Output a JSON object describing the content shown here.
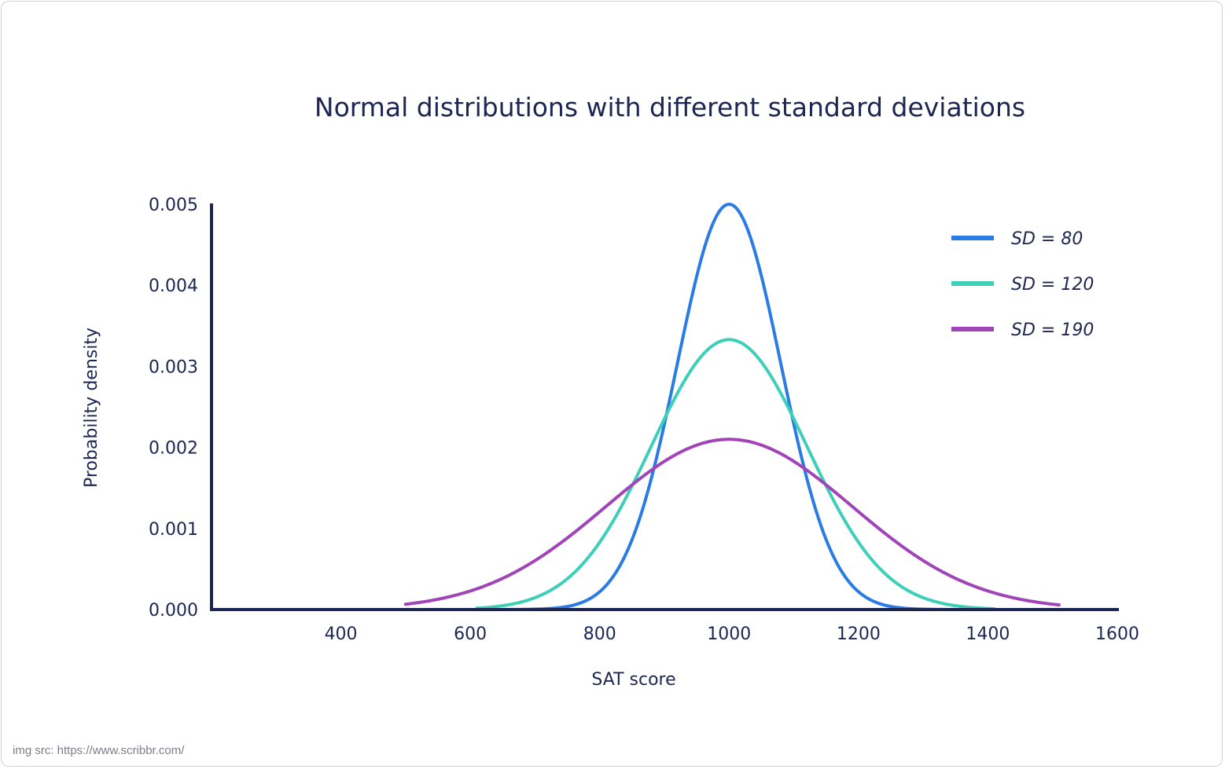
{
  "source_note": "img src: https://www.scribbr.com/",
  "colors": {
    "text": "#1d2653",
    "axis": "#1d2653",
    "background": "#ffffff"
  },
  "chart_data": {
    "type": "line",
    "title": "Normal distributions with different standard deviations",
    "xlabel": "SAT score",
    "ylabel": "Probability density",
    "xlim": [
      200,
      1600
    ],
    "ylim": [
      0,
      0.005
    ],
    "x_ticks": [
      400,
      600,
      800,
      1000,
      1200,
      1400,
      1600
    ],
    "x_tick_labels": [
      "400",
      "600",
      "800",
      "1000",
      "1200",
      "1400",
      "1600"
    ],
    "y_ticks": [
      0,
      0.001,
      0.002,
      0.003,
      0.004,
      0.005
    ],
    "y_tick_labels": [
      "0.000",
      "0.001",
      "0.002",
      "0.003",
      "0.004",
      "0.005"
    ],
    "grid": false,
    "legend_position": "top-right",
    "series": [
      {
        "name": "SD = 80",
        "mean": 1000,
        "sd": 80,
        "peak": 0.005,
        "x_range": [
          500,
          1500
        ],
        "color": "#2a7be4"
      },
      {
        "name": "SD = 120",
        "mean": 1000,
        "sd": 120,
        "peak": 0.00333,
        "x_range": [
          610,
          1410
        ],
        "color": "#3ecfb8"
      },
      {
        "name": "SD = 190",
        "mean": 1000,
        "sd": 190,
        "peak": 0.0021,
        "x_range": [
          500,
          1510
        ],
        "color": "#a144b8"
      }
    ]
  }
}
